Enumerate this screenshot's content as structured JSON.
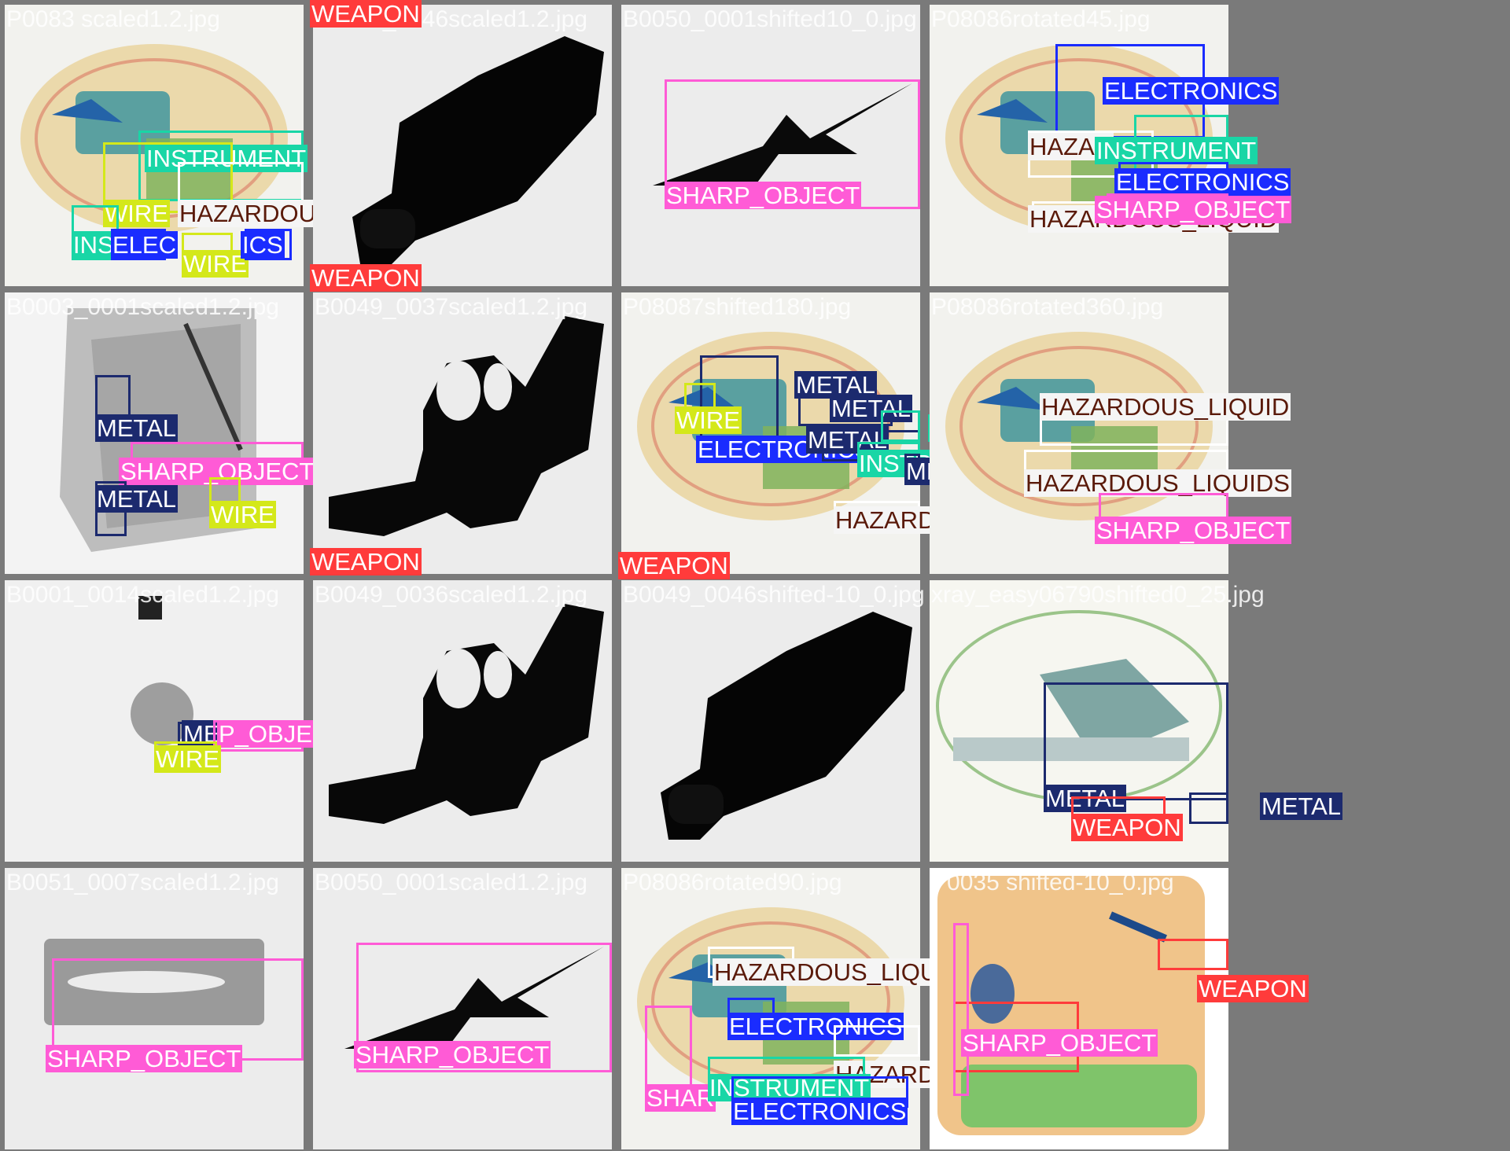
{
  "colors": {
    "WEAPON": {
      "bg": "#ff3b3b",
      "fg": "#ffffff"
    },
    "SHARP_OBJECT": {
      "bg": "#ff5bd6",
      "fg": "#ffffff"
    },
    "ELECTRONICS": {
      "bg": "#1a2cff",
      "fg": "#ffffff"
    },
    "INSTRUMENT": {
      "bg": "#19d6a6",
      "fg": "#ffffff"
    },
    "WIRE": {
      "bg": "#d4e81a",
      "fg": "#ffffff"
    },
    "METAL": {
      "bg": "#1c2a6e",
      "fg": "#ffffff"
    },
    "HAZARDOUS_LIQUID": {
      "bg": "#f5f5f5",
      "fg": "#5a1a0a"
    }
  },
  "tiles": [
    {
      "filename": "P0083 scaled1.2.jpg",
      "image": "bag-color",
      "labels": [
        {
          "text": "INSTRUMENT",
          "cls": "INSTRUMENT"
        },
        {
          "text": "WIRE",
          "cls": "WIRE"
        },
        {
          "text": "HAZARDOUS_LIQUID",
          "cls": "HAZARDOUS_LIQUID"
        },
        {
          "text": "INS",
          "cls": "INSTRUMENT"
        },
        {
          "text": "ELEC",
          "cls": "ELECTRONICS"
        },
        {
          "text": "WIRE",
          "cls": "WIRE"
        },
        {
          "text": "ICS",
          "cls": "ELECTRONICS"
        }
      ]
    },
    {
      "filename": "B0049_0046scaled1.2.jpg",
      "image": "gun-grey",
      "labels": [
        {
          "text": "WEAPON",
          "cls": "WEAPON"
        },
        {
          "text": "WEAPON",
          "cls": "WEAPON"
        }
      ]
    },
    {
      "filename": "B0050_0001shifted10_0.jpg",
      "image": "scissors-grey",
      "labels": [
        {
          "text": "SHARP_OBJECT",
          "cls": "SHARP_OBJECT"
        }
      ]
    },
    {
      "filename": "P08086rotated45.jpg",
      "image": "bag-color",
      "labels": [
        {
          "text": "ELECTRONICS",
          "cls": "ELECTRONICS"
        },
        {
          "text": "HAZAR",
          "cls": "HAZARDOUS_LIQUID"
        },
        {
          "text": "INSTRUMENT",
          "cls": "INSTRUMENT"
        },
        {
          "text": "ELECTRONICS",
          "cls": "ELECTRONICS"
        },
        {
          "text": "HAZARDOUS_LIQUID",
          "cls": "HAZARDOUS_LIQUID"
        },
        {
          "text": "SHARP_OBJECT",
          "cls": "SHARP_OBJECT"
        }
      ]
    },
    {
      "filename": "B0003_0001scaled1.2.jpg",
      "image": "bag-grey",
      "labels": [
        {
          "text": "METAL",
          "cls": "METAL"
        },
        {
          "text": "SHARP_OBJECT",
          "cls": "SHARP_OBJECT"
        },
        {
          "text": "METAL",
          "cls": "METAL"
        },
        {
          "text": "WIRE",
          "cls": "WIRE"
        }
      ]
    },
    {
      "filename": "B0049_0037scaled1.2.jpg",
      "image": "revolver-grey",
      "labels": [
        {
          "text": "WEAPON",
          "cls": "WEAPON"
        }
      ]
    },
    {
      "filename": "P08087shifted180.jpg",
      "image": "bag-color",
      "labels": [
        {
          "text": "METAL",
          "cls": "METAL"
        },
        {
          "text": "METAL",
          "cls": "METAL"
        },
        {
          "text": "WIRE",
          "cls": "WIRE"
        },
        {
          "text": "ELECTRONICS",
          "cls": "ELECTRONICS"
        },
        {
          "text": "METAL",
          "cls": "METAL"
        },
        {
          "text": "INSTRUMENT",
          "cls": "INSTRUMENT"
        },
        {
          "text": "INSTRUMENT",
          "cls": "INSTRUMENT"
        },
        {
          "text": "METAL",
          "cls": "METAL"
        },
        {
          "text": "WIRE",
          "cls": "WIRE"
        },
        {
          "text": "HAZARDOUS_LIQUID",
          "cls": "HAZARDOUS_LIQUID"
        },
        {
          "text": "WEAPON",
          "cls": "WEAPON"
        }
      ]
    },
    {
      "filename": "P08086rotated360.jpg",
      "image": "bag-color",
      "labels": [
        {
          "text": "HAZARDOUS_LIQUID",
          "cls": "HAZARDOUS_LIQUID"
        },
        {
          "text": "HAZARDOUS_LIQUIDS",
          "cls": "HAZARDOUS_LIQUID"
        },
        {
          "text": "SHARP_OBJECT",
          "cls": "SHARP_OBJECT"
        }
      ]
    },
    {
      "filename": "B0001_0014scaled1.2.jpg",
      "image": "bag-grey-small",
      "labels": [
        {
          "text": "METAL",
          "cls": "METAL"
        },
        {
          "text": "P_OBJECT",
          "cls": "SHARP_OBJECT"
        },
        {
          "text": "WIRE",
          "cls": "WIRE"
        }
      ]
    },
    {
      "filename": "B0049_0036scaled1.2.jpg",
      "image": "revolver-grey",
      "labels": []
    },
    {
      "filename": "B0049_0046shifted-10_0.jpg",
      "image": "gun-grey",
      "labels": []
    },
    {
      "filename": "xray_easy06790shifted0_25.jpg",
      "image": "bag-light",
      "labels": [
        {
          "text": "METAL",
          "cls": "METAL"
        },
        {
          "text": "METAL",
          "cls": "METAL"
        },
        {
          "text": "WEAPON",
          "cls": "WEAPON"
        }
      ]
    },
    {
      "filename": "B0051_0007scaled1.2.jpg",
      "image": "blade-grey",
      "labels": [
        {
          "text": "SHARP_OBJECT",
          "cls": "SHARP_OBJECT"
        }
      ]
    },
    {
      "filename": "B0050_0001scaled1.2.jpg",
      "image": "scissors-grey",
      "labels": [
        {
          "text": "SHARP_OBJECT",
          "cls": "SHARP_OBJECT"
        }
      ]
    },
    {
      "filename": "P08086rotated90.jpg",
      "image": "bag-color",
      "labels": [
        {
          "text": "HAZARDOUS_LIQUID",
          "cls": "HAZARDOUS_LIQUID"
        },
        {
          "text": "ELECTRONICS",
          "cls": "ELECTRONICS"
        },
        {
          "text": "HAZARDOUS_LIQ",
          "cls": "HAZARDOUS_LIQUID"
        },
        {
          "text": "SHAR",
          "cls": "SHARP_OBJECT"
        },
        {
          "text": "INSTRUMENT",
          "cls": "INSTRUMENT"
        },
        {
          "text": "ELECTRONICS",
          "cls": "ELECTRONICS"
        }
      ]
    },
    {
      "filename": "P0035 shifted-10_0.jpg",
      "image": "bag-orange",
      "labels": [
        {
          "text": "WEAPON",
          "cls": "WEAPON"
        },
        {
          "text": "WEAPON",
          "cls": "WEAPON"
        },
        {
          "text": "SHARP_OBJECT",
          "cls": "SHARP_OBJECT"
        }
      ]
    }
  ]
}
